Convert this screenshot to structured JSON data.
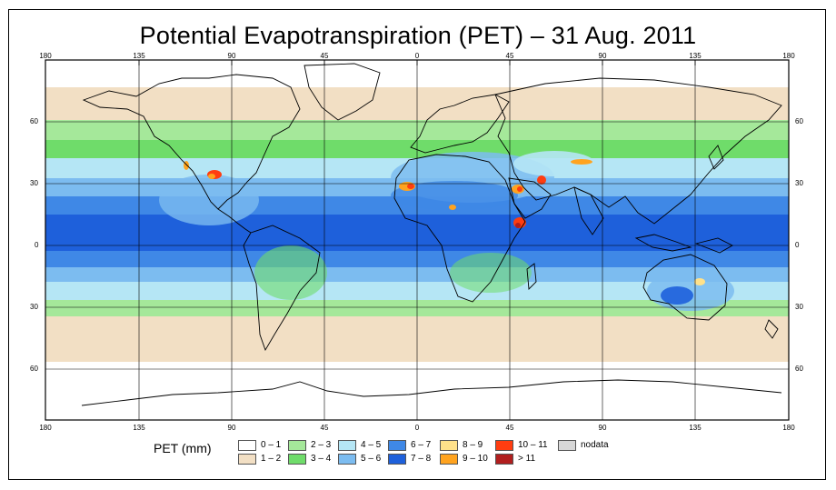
{
  "title": "Potential Evapotranspiration (PET) – 31 Aug. 2011",
  "axes": {
    "lon_ticks_top": [
      "180",
      "135",
      "90",
      "45",
      "0",
      "45",
      "90",
      "135",
      "180"
    ],
    "lon_ticks_bottom": [
      "180",
      "135",
      "90",
      "45",
      "0",
      "45",
      "90",
      "135",
      "180"
    ],
    "lat_ticks_left": [
      "60",
      "30",
      "0",
      "30",
      "60"
    ],
    "lat_ticks_right": [
      "60",
      "30",
      "0",
      "30",
      "60"
    ]
  },
  "legend": {
    "title": "PET (mm)",
    "items": [
      {
        "label": "0 – 1",
        "color": "#ffffff"
      },
      {
        "label": "1 – 2",
        "color": "#f2dfc4"
      },
      {
        "label": "2 – 3",
        "color": "#a5e89a"
      },
      {
        "label": "3 – 4",
        "color": "#6fdc6a"
      },
      {
        "label": "4 – 5",
        "color": "#b5e6f5"
      },
      {
        "label": "5 – 6",
        "color": "#7cbcf0"
      },
      {
        "label": "6 – 7",
        "color": "#3f88e6"
      },
      {
        "label": "7 – 8",
        "color": "#1e60db"
      },
      {
        "label": "8 – 9",
        "color": "#ffe18a"
      },
      {
        "label": "9 – 10",
        "color": "#ffa31f"
      },
      {
        "label": "10 – 11",
        "color": "#ff3d10"
      },
      {
        "label": "> 11",
        "color": "#b11e1e"
      },
      {
        "label": "nodata",
        "color": "#d7d7d7"
      }
    ]
  }
}
